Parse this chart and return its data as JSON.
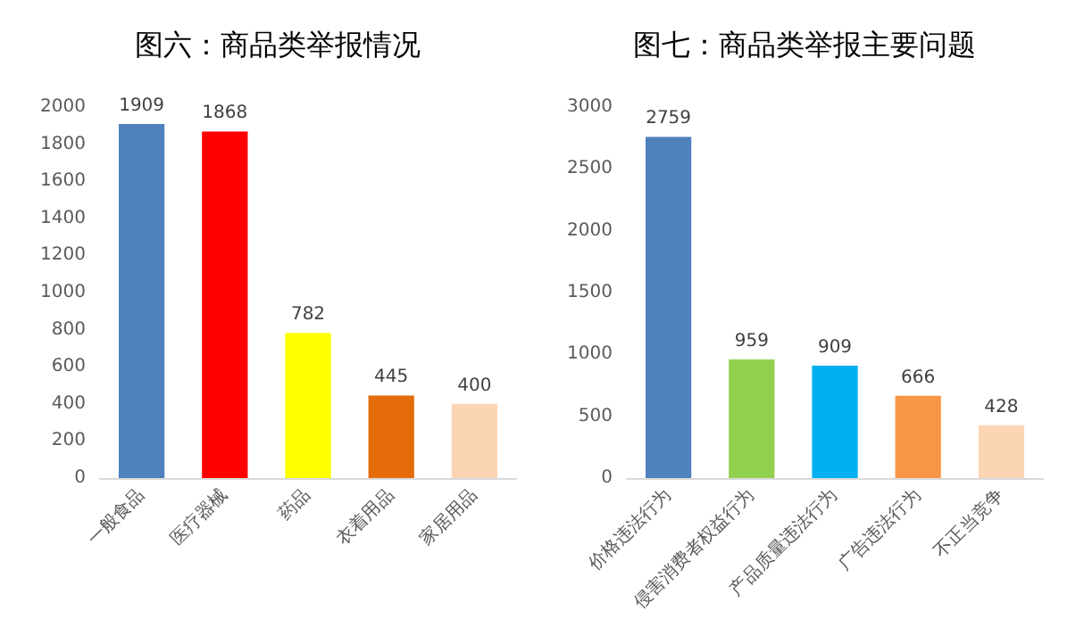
{
  "chart_data": [
    {
      "type": "bar",
      "title": "图六：商品类举报情况",
      "categories": [
        "一般食品",
        "医疗器械",
        "药品",
        "衣着用品",
        "家居用品"
      ],
      "values": [
        1909,
        1868,
        782,
        445,
        400
      ],
      "colors": [
        "#4f81bd",
        "#ff0000",
        "#ffff00",
        "#e46c0a",
        "#fcd5b5"
      ],
      "ylim": [
        0,
        2000
      ],
      "yticks": [
        0,
        200,
        400,
        600,
        800,
        1000,
        1200,
        1400,
        1600,
        1800,
        2000
      ],
      "grid": false,
      "data_labels": true
    },
    {
      "type": "bar",
      "title": "图七：商品类举报主要问题",
      "categories": [
        "价格违法行为",
        "侵害消费者权益行为",
        "产品质量违法行为",
        "广告违法行为",
        "不正当竞争"
      ],
      "values": [
        2759,
        959,
        909,
        666,
        428
      ],
      "colors": [
        "#4f81bd",
        "#92d050",
        "#00b0f0",
        "#f79646",
        "#fcd5b5"
      ],
      "ylim": [
        0,
        3000
      ],
      "yticks": [
        0,
        500,
        1000,
        1500,
        2000,
        2500,
        3000
      ],
      "grid": false,
      "data_labels": true
    }
  ]
}
